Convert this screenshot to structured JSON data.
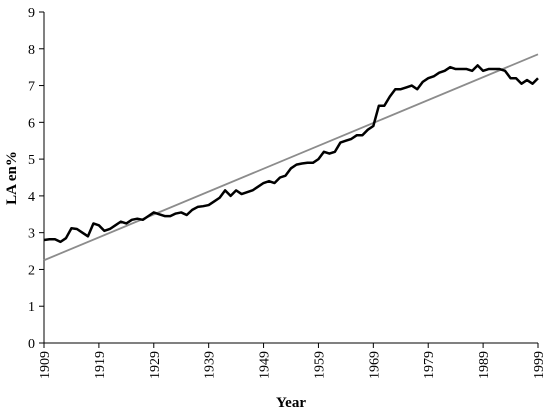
{
  "chart_data": {
    "type": "line",
    "xlabel": "Year",
    "ylabel": "LA en%",
    "xlim": [
      1909,
      1999
    ],
    "ylim": [
      0,
      9
    ],
    "xticks": [
      1909,
      1919,
      1929,
      1939,
      1949,
      1959,
      1969,
      1979,
      1989,
      1999
    ],
    "yticks": [
      0,
      1,
      2,
      3,
      4,
      5,
      6,
      7,
      8,
      9
    ],
    "grid": false,
    "series": [
      {
        "color": "#000000",
        "x": [
          1909,
          1910,
          1911,
          1912,
          1913,
          1914,
          1915,
          1916,
          1917,
          1918,
          1919,
          1920,
          1921,
          1922,
          1923,
          1924,
          1925,
          1926,
          1927,
          1928,
          1929,
          1930,
          1931,
          1932,
          1933,
          1934,
          1935,
          1936,
          1937,
          1938,
          1939,
          1940,
          1941,
          1942,
          1943,
          1944,
          1945,
          1946,
          1947,
          1948,
          1949,
          1950,
          1951,
          1952,
          1953,
          1954,
          1955,
          1956,
          1957,
          1958,
          1959,
          1960,
          1961,
          1962,
          1963,
          1964,
          1965,
          1966,
          1967,
          1968,
          1969,
          1970,
          1971,
          1972,
          1973,
          1974,
          1975,
          1976,
          1977,
          1978,
          1979,
          1980,
          1981,
          1982,
          1983,
          1984,
          1985,
          1986,
          1987,
          1988,
          1989,
          1990,
          1991,
          1992,
          1993,
          1994,
          1995,
          1996,
          1997,
          1998,
          1999
        ],
        "values": [
          2.8,
          2.82,
          2.82,
          2.75,
          2.85,
          3.12,
          3.1,
          3.0,
          2.9,
          3.25,
          3.2,
          3.05,
          3.1,
          3.2,
          3.3,
          3.25,
          3.35,
          3.38,
          3.35,
          3.45,
          3.55,
          3.5,
          3.45,
          3.45,
          3.52,
          3.55,
          3.48,
          3.62,
          3.7,
          3.72,
          3.75,
          3.85,
          3.95,
          4.15,
          4.0,
          4.15,
          4.05,
          4.1,
          4.15,
          4.25,
          4.35,
          4.4,
          4.35,
          4.5,
          4.55,
          4.75,
          4.85,
          4.88,
          4.9,
          4.9,
          5.0,
          5.2,
          5.15,
          5.2,
          5.45,
          5.5,
          5.55,
          5.65,
          5.65,
          5.8,
          5.9,
          6.45,
          6.45,
          6.7,
          6.9,
          6.9,
          6.95,
          7.0,
          6.9,
          7.1,
          7.2,
          7.25,
          7.35,
          7.4,
          7.5,
          7.45,
          7.45,
          7.45,
          7.4,
          7.55,
          7.4,
          7.45,
          7.45,
          7.45,
          7.4,
          7.2,
          7.2,
          7.05,
          7.15,
          7.05,
          7.2
        ]
      },
      {
        "color": "#8c8c8c",
        "x": [
          1909,
          1999
        ],
        "values": [
          2.25,
          7.85
        ]
      }
    ]
  }
}
